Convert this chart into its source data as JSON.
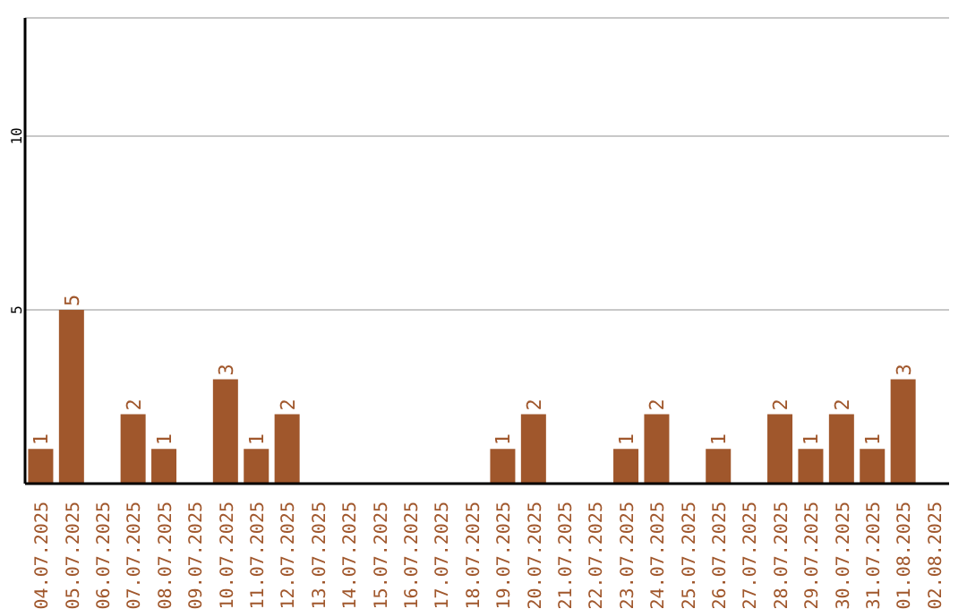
{
  "chart_data": {
    "type": "bar",
    "categories": [
      "04.07.2025",
      "05.07.2025",
      "06.07.2025",
      "07.07.2025",
      "08.07.2025",
      "09.07.2025",
      "10.07.2025",
      "11.07.2025",
      "12.07.2025",
      "13.07.2025",
      "14.07.2025",
      "15.07.2025",
      "16.07.2025",
      "17.07.2025",
      "18.07.2025",
      "19.07.2025",
      "20.07.2025",
      "21.07.2025",
      "22.07.2025",
      "23.07.2025",
      "24.07.2025",
      "25.07.2025",
      "26.07.2025",
      "27.07.2025",
      "28.07.2025",
      "29.07.2025",
      "30.07.2025",
      "31.07.2025",
      "01.08.2025",
      "02.08.2025"
    ],
    "values": [
      1,
      5,
      0,
      2,
      1,
      0,
      3,
      1,
      2,
      0,
      0,
      0,
      0,
      0,
      0,
      1,
      2,
      0,
      0,
      1,
      2,
      0,
      1,
      0,
      2,
      1,
      2,
      1,
      3,
      0
    ],
    "value_labels": [
      "1",
      "5",
      null,
      "2",
      "1",
      null,
      "3",
      "1",
      "2",
      null,
      null,
      null,
      null,
      null,
      null,
      "1",
      "2",
      null,
      null,
      "1",
      "2",
      null,
      "1",
      null,
      "2",
      "1",
      "2",
      "1",
      "3",
      null
    ],
    "color": "#a0572c",
    "ylim": [
      0,
      13.4
    ],
    "yticks": [
      {
        "value": 0,
        "label": null
      },
      5,
      10
    ],
    "grid": "y"
  }
}
